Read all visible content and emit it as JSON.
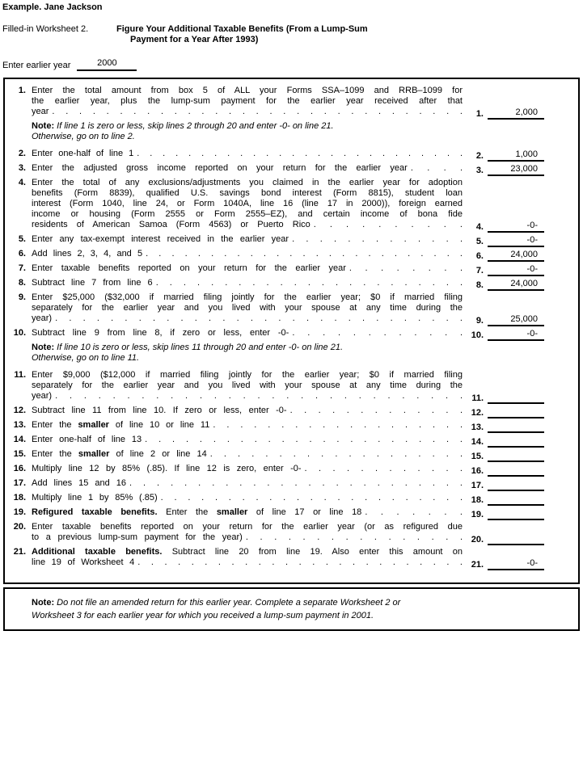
{
  "header": {
    "example": "Example. Jane Jackson",
    "worksheet_label": "Filled-in Worksheet 2.",
    "title_line1": "Figure Your Additional Taxable Benefits (From a Lump-Sum",
    "title_line2": "Payment for a Year After 1993)",
    "earlier_year_label": "Enter earlier year",
    "earlier_year_value": "2000"
  },
  "worksheet": {
    "rows": [
      {
        "type": "item",
        "name": "line-1",
        "num": "1.",
        "value": "2,000",
        "leader": 31,
        "lines": [
          [
            {
              "t": "Enter the total amount from box 5 of ALL your Forms SSA–1099 and RRB–1099 for"
            }
          ],
          [
            {
              "t": "the earlier year, plus the lump-sum payment for the earlier year received after that"
            }
          ],
          [
            {
              "t": "year"
            }
          ]
        ]
      },
      {
        "type": "note",
        "name": "note-after-line-1",
        "num": "",
        "value": "",
        "leader": 0,
        "lines": [
          [
            {
              "t": "Note:",
              "b": true,
              "r": true
            },
            {
              "t": " If line 1 is zero or less, skip lines 2 through 20 and enter -0- on line 21."
            }
          ],
          [
            {
              "t": "Otherwise, go on to line 2."
            }
          ]
        ]
      },
      {
        "type": "item",
        "name": "line-2",
        "num": "2.",
        "value": "1,000",
        "leader": 26,
        "lines": [
          [
            {
              "t": "Enter one-half of line 1"
            }
          ]
        ]
      },
      {
        "type": "item",
        "name": "line-3",
        "num": "3.",
        "value": "23,000",
        "leader": 4,
        "lines": [
          [
            {
              "t": "Enter the adjusted gross income reported on your return for the earlier year"
            }
          ]
        ]
      },
      {
        "type": "item",
        "name": "line-4",
        "num": "4.",
        "value": "-0-",
        "leader": 10,
        "lines": [
          [
            {
              "t": "Enter the total of any exclusions/adjustments you claimed in the earlier year for adoption"
            }
          ],
          [
            {
              "t": "benefits (Form 8839), qualified U.S. savings bond interest (Form 8815), student loan"
            }
          ],
          [
            {
              "t": "interest (Form 1040, line 24, or Form 1040A, line 16 (line 17 in 2000)), foreign earned"
            }
          ],
          [
            {
              "t": "income or housing (Form 2555 or Form 2555–EZ), and certain income of bona fide"
            }
          ],
          [
            {
              "t": "residents of American Samoa (Form 4563) or Puerto Rico"
            }
          ]
        ]
      },
      {
        "type": "item",
        "name": "line-5",
        "num": "5.",
        "value": "-0-",
        "leader": 13,
        "lines": [
          [
            {
              "t": "Enter any tax-exempt interest received in the earlier year"
            }
          ]
        ]
      },
      {
        "type": "item",
        "name": "line-6",
        "num": "6.",
        "value": "24,000",
        "leader": 25,
        "lines": [
          [
            {
              "t": "Add lines 2, 3, 4, and 5"
            }
          ]
        ]
      },
      {
        "type": "item",
        "name": "line-7",
        "num": "7.",
        "value": "-0-",
        "leader": 8,
        "lines": [
          [
            {
              "t": "Enter taxable benefits reported on your return for the earlier year"
            }
          ]
        ]
      },
      {
        "type": "item",
        "name": "line-8",
        "num": "8.",
        "value": "24,000",
        "leader": 23,
        "lines": [
          [
            {
              "t": "Subtract line 7 from line 6"
            }
          ]
        ]
      },
      {
        "type": "item",
        "name": "line-9",
        "num": "9.",
        "value": "25,000",
        "leader": 30,
        "lines": [
          [
            {
              "t": "Enter $25,000 ($32,000 if married filing jointly for the earlier year; $0 if married filing"
            }
          ],
          [
            {
              "t": "separately for the earlier year and you lived with your spouse at any time during the"
            }
          ],
          [
            {
              "t": "year)"
            }
          ]
        ]
      },
      {
        "type": "item",
        "name": "line-10",
        "num": "10.",
        "value": "-0-",
        "leader": 12,
        "lines": [
          [
            {
              "t": "Subtract line 9 from line 8, if zero or less, enter -0-"
            }
          ]
        ]
      },
      {
        "type": "note",
        "name": "note-after-line-10",
        "num": "",
        "value": "",
        "leader": 0,
        "lines": [
          [
            {
              "t": "Note:",
              "b": true,
              "r": true
            },
            {
              "t": " If line 10 is zero or less, skip lines 11 through 20 and enter -0- on line 21."
            }
          ],
          [
            {
              "t": "Otherwise, go on to line 11."
            }
          ]
        ]
      },
      {
        "type": "item",
        "name": "line-11",
        "num": "11.",
        "value": "",
        "leader": 29,
        "lines": [
          [
            {
              "t": "Enter $9,000 ($12,000 if married filing jointly for the earlier year; $0 if married filing"
            }
          ],
          [
            {
              "t": "separately for the earlier year and you lived with your spouse at any time during the"
            }
          ],
          [
            {
              "t": "year)"
            }
          ]
        ]
      },
      {
        "type": "item",
        "name": "line-12",
        "num": "12.",
        "value": "",
        "leader": 13,
        "lines": [
          [
            {
              "t": "Subtract line 11 from line 10. If zero or less, enter -0-"
            }
          ]
        ]
      },
      {
        "type": "item",
        "name": "line-13",
        "num": "13.",
        "value": "",
        "leader": 19,
        "lines": [
          [
            {
              "t": "Enter the "
            },
            {
              "t": "smaller",
              "b": true
            },
            {
              "t": " of line 10 or line 11"
            }
          ]
        ]
      },
      {
        "type": "item",
        "name": "line-14",
        "num": "14.",
        "value": "",
        "leader": 24,
        "lines": [
          [
            {
              "t": "Enter one-half of line 13"
            }
          ]
        ]
      },
      {
        "type": "item",
        "name": "line-15",
        "num": "15.",
        "value": "",
        "leader": 19,
        "lines": [
          [
            {
              "t": "Enter the "
            },
            {
              "t": "smaller",
              "b": true
            },
            {
              "t": " of line 2 or line 14"
            }
          ]
        ]
      },
      {
        "type": "item",
        "name": "line-16",
        "num": "16.",
        "value": "",
        "leader": 12,
        "lines": [
          [
            {
              "t": "Multiply line 12 by 85% (.85). If line 12 is zero, enter -0-"
            }
          ]
        ]
      },
      {
        "type": "item",
        "name": "line-17",
        "num": "17.",
        "value": "",
        "leader": 25,
        "lines": [
          [
            {
              "t": "Add lines 15 and 16"
            }
          ]
        ]
      },
      {
        "type": "item",
        "name": "line-18",
        "num": "18.",
        "value": "",
        "leader": 23,
        "lines": [
          [
            {
              "t": "Multiply line 1 by 85% (.85)"
            }
          ]
        ]
      },
      {
        "type": "item",
        "name": "line-19",
        "num": "19.",
        "value": "",
        "leader": 7,
        "lines": [
          [
            {
              "t": "Refigured taxable benefits.",
              "b": true
            },
            {
              "t": " Enter the "
            },
            {
              "t": "smaller",
              "b": true
            },
            {
              "t": " of line 17 or line 18"
            }
          ]
        ]
      },
      {
        "type": "item",
        "name": "line-20",
        "num": "20.",
        "value": "",
        "leader": 16,
        "lines": [
          [
            {
              "t": "Enter taxable benefits reported on your return for the earlier year (or as refigured due"
            }
          ],
          [
            {
              "t": "to a previous lump-sum payment for the year)"
            }
          ]
        ]
      },
      {
        "type": "item",
        "name": "line-21",
        "num": "21.",
        "value": "-0-",
        "leader": 25,
        "lines": [
          [
            {
              "t": "Additional taxable benefits.",
              "b": true
            },
            {
              "t": " Subtract line 20 from line 19. Also enter this amount on"
            }
          ],
          [
            {
              "t": "line 19 of Worksheet 4"
            }
          ]
        ]
      }
    ]
  },
  "footer": {
    "prefix": "Note:",
    "line1": "Do not file an amended return for this earlier year. Complete a separate Worksheet 2 or",
    "line2": "Worksheet 3 for each earlier year for which you received a lump-sum payment in 2001."
  }
}
